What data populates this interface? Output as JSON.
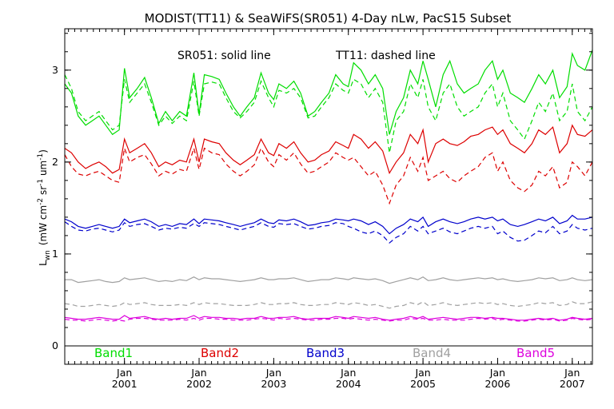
{
  "chart_data": {
    "type": "line",
    "title": "MODIST(TT11) & SeaWiFS(SR051) 4-Day nLw, PacS15 Subset",
    "annotation_solid": "SR051: solid line",
    "annotation_dashed": "TT11: dashed line",
    "ylabel": "L_wn (mW cm^-2 sr^-1 um^-1)",
    "ylabel_parts": {
      "L": "L",
      "wn": "wn",
      "units": "(mW cm",
      "m2": "-2",
      "sr": " sr",
      "m1a": "-1",
      "um": " um",
      "m1b": "-1",
      "close": ")"
    },
    "xlabel": "",
    "ylim": [
      -0.2,
      3.45
    ],
    "xlim": [
      2000.2,
      2007.27
    ],
    "yticks": [
      0,
      1,
      2,
      3
    ],
    "ytick_labels": [
      "0",
      "1",
      "2",
      "3"
    ],
    "xticks": [
      2001,
      2002,
      2003,
      2004,
      2005,
      2006,
      2007
    ],
    "xtick_top": "Jan",
    "xtick_bottom": [
      "2001",
      "2002",
      "2003",
      "2004",
      "2005",
      "2006",
      "2007"
    ],
    "grid": false,
    "x": [
      2000.2,
      2000.29,
      2000.38,
      2000.48,
      2000.57,
      2000.66,
      2000.75,
      2000.84,
      2000.93,
      2001.0,
      2001.07,
      2001.17,
      2001.27,
      2001.36,
      2001.46,
      2001.55,
      2001.64,
      2001.74,
      2001.83,
      2001.93,
      2002.0,
      2002.07,
      2002.17,
      2002.27,
      2002.36,
      2002.46,
      2002.55,
      2002.64,
      2002.74,
      2002.83,
      2002.93,
      2003.0,
      2003.07,
      2003.17,
      2003.27,
      2003.36,
      2003.46,
      2003.55,
      2003.64,
      2003.74,
      2003.83,
      2003.93,
      2004.0,
      2004.07,
      2004.17,
      2004.27,
      2004.36,
      2004.46,
      2004.55,
      2004.64,
      2004.74,
      2004.83,
      2004.93,
      2005.0,
      2005.07,
      2005.17,
      2005.27,
      2005.36,
      2005.46,
      2005.55,
      2005.64,
      2005.74,
      2005.83,
      2005.93,
      2006.0,
      2006.07,
      2006.17,
      2006.27,
      2006.36,
      2006.46,
      2006.55,
      2006.64,
      2006.74,
      2006.83,
      2006.93,
      2007.0,
      2007.07,
      2007.17,
      2007.27
    ],
    "series": [
      {
        "name": "Band1",
        "style": "solid",
        "color": "#00dd00",
        "values": [
          2.85,
          2.75,
          2.5,
          2.4,
          2.45,
          2.5,
          2.4,
          2.3,
          2.35,
          3.02,
          2.7,
          2.8,
          2.92,
          2.7,
          2.42,
          2.55,
          2.45,
          2.55,
          2.5,
          2.97,
          2.52,
          2.95,
          2.93,
          2.9,
          2.75,
          2.6,
          2.5,
          2.6,
          2.7,
          2.97,
          2.75,
          2.68,
          2.85,
          2.8,
          2.88,
          2.75,
          2.5,
          2.55,
          2.65,
          2.75,
          2.95,
          2.85,
          2.82,
          3.08,
          3.0,
          2.85,
          2.95,
          2.8,
          2.3,
          2.55,
          2.7,
          3.0,
          2.85,
          3.1,
          2.9,
          2.6,
          2.95,
          3.1,
          2.85,
          2.75,
          2.8,
          2.85,
          3.0,
          3.1,
          2.9,
          3.0,
          2.75,
          2.7,
          2.65,
          2.8,
          2.95,
          2.85,
          3.0,
          2.7,
          2.82,
          3.18,
          3.05,
          3.0,
          3.22
        ]
      },
      {
        "name": "Band1 TT11",
        "style": "dashed",
        "color": "#00dd00",
        "values": [
          2.95,
          2.8,
          2.55,
          2.45,
          2.5,
          2.55,
          2.45,
          2.35,
          2.4,
          2.9,
          2.65,
          2.75,
          2.85,
          2.65,
          2.4,
          2.5,
          2.42,
          2.5,
          2.45,
          2.88,
          2.5,
          2.85,
          2.87,
          2.85,
          2.7,
          2.55,
          2.48,
          2.55,
          2.65,
          2.88,
          2.7,
          2.6,
          2.78,
          2.75,
          2.8,
          2.7,
          2.48,
          2.5,
          2.6,
          2.7,
          2.85,
          2.78,
          2.75,
          2.9,
          2.85,
          2.7,
          2.8,
          2.65,
          2.1,
          2.45,
          2.55,
          2.85,
          2.7,
          2.9,
          2.6,
          2.45,
          2.75,
          2.85,
          2.6,
          2.5,
          2.55,
          2.6,
          2.75,
          2.85,
          2.6,
          2.75,
          2.45,
          2.35,
          2.25,
          2.45,
          2.65,
          2.55,
          2.75,
          2.45,
          2.55,
          2.85,
          2.55,
          2.45,
          2.6
        ]
      },
      {
        "name": "Band2",
        "style": "solid",
        "color": "#dd0000",
        "values": [
          2.15,
          2.1,
          2.0,
          1.93,
          1.97,
          2.0,
          1.95,
          1.88,
          1.92,
          2.25,
          2.1,
          2.15,
          2.2,
          2.1,
          1.95,
          2.0,
          1.97,
          2.02,
          2.0,
          2.25,
          2.0,
          2.25,
          2.22,
          2.2,
          2.1,
          2.02,
          1.97,
          2.02,
          2.08,
          2.25,
          2.1,
          2.07,
          2.2,
          2.15,
          2.22,
          2.1,
          2.0,
          2.02,
          2.08,
          2.12,
          2.22,
          2.18,
          2.15,
          2.3,
          2.25,
          2.15,
          2.22,
          2.12,
          1.88,
          2.0,
          2.1,
          2.3,
          2.2,
          2.35,
          2.0,
          2.2,
          2.25,
          2.2,
          2.18,
          2.22,
          2.28,
          2.3,
          2.35,
          2.38,
          2.3,
          2.35,
          2.2,
          2.15,
          2.1,
          2.2,
          2.35,
          2.3,
          2.38,
          2.1,
          2.2,
          2.4,
          2.3,
          2.28,
          2.35
        ]
      },
      {
        "name": "Band2 TT11",
        "style": "dashed",
        "color": "#dd0000",
        "values": [
          2.08,
          1.95,
          1.87,
          1.85,
          1.88,
          1.9,
          1.85,
          1.8,
          1.78,
          2.15,
          2.0,
          2.05,
          2.08,
          1.98,
          1.85,
          1.9,
          1.87,
          1.92,
          1.9,
          2.15,
          1.92,
          2.15,
          2.1,
          2.08,
          1.98,
          1.9,
          1.85,
          1.9,
          1.97,
          2.15,
          2.0,
          1.95,
          2.08,
          2.02,
          2.1,
          1.98,
          1.88,
          1.9,
          1.95,
          2.0,
          2.1,
          2.05,
          2.02,
          2.05,
          1.95,
          1.85,
          1.9,
          1.75,
          1.55,
          1.75,
          1.85,
          2.05,
          1.9,
          2.05,
          1.8,
          1.85,
          1.9,
          1.82,
          1.78,
          1.85,
          1.9,
          1.95,
          2.05,
          2.1,
          1.9,
          2.0,
          1.8,
          1.72,
          1.68,
          1.75,
          1.9,
          1.85,
          1.95,
          1.72,
          1.78,
          2.0,
          1.95,
          1.85,
          2.0
        ]
      },
      {
        "name": "Band3",
        "style": "solid",
        "color": "#0000cc",
        "values": [
          1.38,
          1.35,
          1.3,
          1.28,
          1.3,
          1.32,
          1.3,
          1.28,
          1.3,
          1.38,
          1.34,
          1.36,
          1.38,
          1.35,
          1.3,
          1.32,
          1.3,
          1.33,
          1.32,
          1.38,
          1.33,
          1.38,
          1.37,
          1.36,
          1.34,
          1.32,
          1.3,
          1.32,
          1.34,
          1.38,
          1.34,
          1.33,
          1.37,
          1.36,
          1.38,
          1.35,
          1.31,
          1.32,
          1.34,
          1.35,
          1.38,
          1.37,
          1.36,
          1.38,
          1.36,
          1.32,
          1.35,
          1.3,
          1.22,
          1.28,
          1.32,
          1.38,
          1.35,
          1.4,
          1.3,
          1.35,
          1.38,
          1.35,
          1.33,
          1.35,
          1.38,
          1.4,
          1.38,
          1.4,
          1.36,
          1.38,
          1.32,
          1.3,
          1.32,
          1.35,
          1.38,
          1.36,
          1.4,
          1.33,
          1.36,
          1.42,
          1.38,
          1.38,
          1.4
        ]
      },
      {
        "name": "Band3 TT11",
        "style": "dashed",
        "color": "#0000cc",
        "values": [
          1.35,
          1.3,
          1.26,
          1.25,
          1.27,
          1.28,
          1.26,
          1.24,
          1.26,
          1.34,
          1.3,
          1.32,
          1.33,
          1.3,
          1.26,
          1.28,
          1.27,
          1.29,
          1.28,
          1.33,
          1.3,
          1.34,
          1.33,
          1.32,
          1.3,
          1.28,
          1.26,
          1.28,
          1.3,
          1.34,
          1.3,
          1.29,
          1.33,
          1.32,
          1.33,
          1.3,
          1.27,
          1.28,
          1.3,
          1.31,
          1.34,
          1.33,
          1.3,
          1.28,
          1.24,
          1.22,
          1.25,
          1.2,
          1.12,
          1.18,
          1.22,
          1.3,
          1.25,
          1.3,
          1.22,
          1.25,
          1.28,
          1.24,
          1.22,
          1.25,
          1.28,
          1.3,
          1.28,
          1.3,
          1.22,
          1.25,
          1.18,
          1.14,
          1.15,
          1.2,
          1.25,
          1.23,
          1.3,
          1.22,
          1.25,
          1.32,
          1.28,
          1.26,
          1.28
        ]
      },
      {
        "name": "Band4",
        "style": "solid",
        "color": "#a0a0a0",
        "values": [
          0.72,
          0.72,
          0.69,
          0.7,
          0.71,
          0.72,
          0.7,
          0.69,
          0.7,
          0.74,
          0.72,
          0.73,
          0.74,
          0.72,
          0.7,
          0.71,
          0.7,
          0.72,
          0.71,
          0.75,
          0.72,
          0.74,
          0.73,
          0.73,
          0.72,
          0.71,
          0.7,
          0.71,
          0.72,
          0.74,
          0.72,
          0.72,
          0.73,
          0.73,
          0.74,
          0.72,
          0.7,
          0.71,
          0.72,
          0.72,
          0.74,
          0.73,
          0.72,
          0.74,
          0.73,
          0.72,
          0.73,
          0.71,
          0.68,
          0.7,
          0.72,
          0.74,
          0.72,
          0.75,
          0.71,
          0.72,
          0.74,
          0.72,
          0.71,
          0.72,
          0.73,
          0.74,
          0.73,
          0.74,
          0.72,
          0.73,
          0.71,
          0.7,
          0.71,
          0.72,
          0.74,
          0.73,
          0.74,
          0.71,
          0.72,
          0.74,
          0.72,
          0.71,
          0.72
        ]
      },
      {
        "name": "Band4 TT11",
        "style": "dashed",
        "color": "#a0a0a0",
        "values": [
          0.46,
          0.45,
          0.43,
          0.43,
          0.44,
          0.45,
          0.44,
          0.43,
          0.44,
          0.47,
          0.45,
          0.46,
          0.47,
          0.45,
          0.44,
          0.44,
          0.44,
          0.45,
          0.44,
          0.47,
          0.45,
          0.47,
          0.46,
          0.46,
          0.45,
          0.44,
          0.44,
          0.44,
          0.45,
          0.47,
          0.45,
          0.45,
          0.46,
          0.46,
          0.47,
          0.45,
          0.44,
          0.44,
          0.45,
          0.45,
          0.47,
          0.46,
          0.45,
          0.47,
          0.46,
          0.44,
          0.45,
          0.43,
          0.41,
          0.43,
          0.44,
          0.47,
          0.45,
          0.48,
          0.44,
          0.45,
          0.47,
          0.45,
          0.44,
          0.45,
          0.46,
          0.47,
          0.46,
          0.47,
          0.45,
          0.46,
          0.44,
          0.43,
          0.44,
          0.45,
          0.47,
          0.46,
          0.47,
          0.44,
          0.45,
          0.48,
          0.46,
          0.46,
          0.48
        ]
      },
      {
        "name": "Band5",
        "style": "solid",
        "color": "#dd00dd",
        "values": [
          0.31,
          0.3,
          0.29,
          0.29,
          0.3,
          0.31,
          0.3,
          0.29,
          0.29,
          0.33,
          0.3,
          0.31,
          0.32,
          0.3,
          0.29,
          0.3,
          0.29,
          0.3,
          0.3,
          0.33,
          0.3,
          0.32,
          0.31,
          0.31,
          0.3,
          0.3,
          0.29,
          0.3,
          0.3,
          0.32,
          0.3,
          0.3,
          0.31,
          0.31,
          0.32,
          0.3,
          0.29,
          0.3,
          0.3,
          0.3,
          0.32,
          0.31,
          0.3,
          0.32,
          0.31,
          0.3,
          0.31,
          0.29,
          0.28,
          0.29,
          0.3,
          0.32,
          0.3,
          0.32,
          0.29,
          0.3,
          0.31,
          0.3,
          0.29,
          0.3,
          0.31,
          0.31,
          0.3,
          0.31,
          0.3,
          0.3,
          0.29,
          0.28,
          0.28,
          0.29,
          0.3,
          0.29,
          0.3,
          0.28,
          0.29,
          0.31,
          0.3,
          0.29,
          0.3
        ]
      },
      {
        "name": "Band5 TT11",
        "style": "dashed",
        "color": "#dd00dd",
        "values": [
          0.29,
          0.28,
          0.28,
          0.27,
          0.28,
          0.29,
          0.28,
          0.27,
          0.28,
          0.27,
          0.29,
          0.3,
          0.3,
          0.29,
          0.28,
          0.28,
          0.28,
          0.29,
          0.28,
          0.3,
          0.28,
          0.3,
          0.3,
          0.29,
          0.29,
          0.28,
          0.28,
          0.28,
          0.29,
          0.3,
          0.29,
          0.28,
          0.3,
          0.29,
          0.3,
          0.29,
          0.28,
          0.28,
          0.29,
          0.29,
          0.3,
          0.3,
          0.29,
          0.3,
          0.29,
          0.28,
          0.29,
          0.28,
          0.27,
          0.28,
          0.28,
          0.3,
          0.29,
          0.3,
          0.28,
          0.28,
          0.29,
          0.28,
          0.28,
          0.28,
          0.29,
          0.3,
          0.29,
          0.3,
          0.28,
          0.29,
          0.28,
          0.27,
          0.27,
          0.28,
          0.29,
          0.28,
          0.29,
          0.27,
          0.28,
          0.3,
          0.29,
          0.28,
          0.29
        ]
      }
    ],
    "legend": [
      {
        "label": "Band1",
        "color": "#00dd00"
      },
      {
        "label": "Band2",
        "color": "#dd0000"
      },
      {
        "label": "Band3",
        "color": "#0000cc"
      },
      {
        "label": "Band4",
        "color": "#a0a0a0"
      },
      {
        "label": "Band5",
        "color": "#dd00dd"
      }
    ],
    "legend_placement": "bottom inside plot"
  }
}
